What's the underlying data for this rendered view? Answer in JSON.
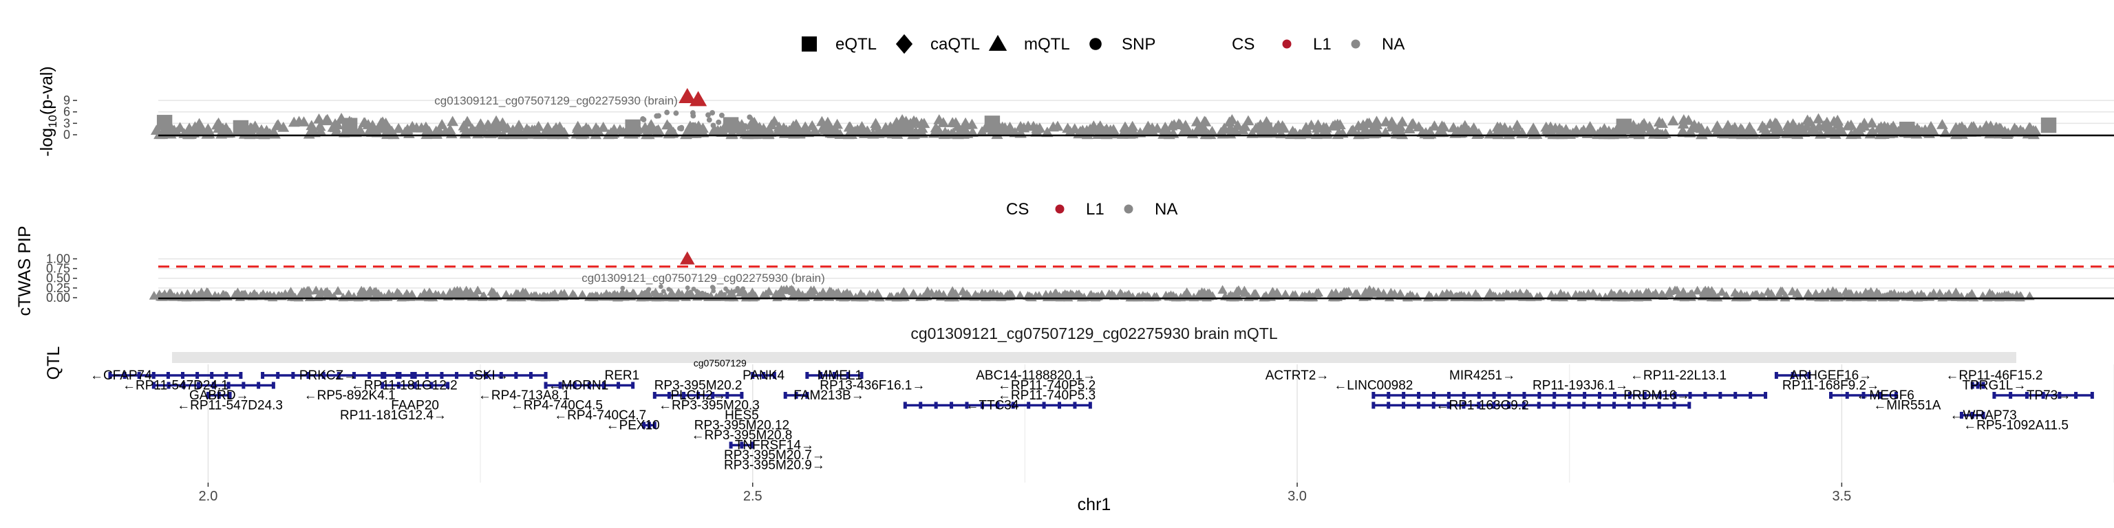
{
  "legend_top": {
    "shape_title": "",
    "shapes": [
      {
        "label": "eQTL",
        "shape": "square"
      },
      {
        "label": "caQTL",
        "shape": "diamond"
      },
      {
        "label": "mQTL",
        "shape": "triangle"
      },
      {
        "label": "SNP",
        "shape": "circle"
      }
    ],
    "cs_title": "CS",
    "cs": [
      {
        "label": "L1",
        "color": "#b2182b"
      },
      {
        "label": "NA",
        "color": "#888888"
      }
    ]
  },
  "legend_mid": {
    "cs_title": "CS",
    "cs": [
      {
        "label": "L1",
        "color": "#b2182b"
      },
      {
        "label": "NA",
        "color": "#888888"
      }
    ]
  },
  "colors": {
    "point_na": "#8c8c8c",
    "point_l1": "#c0272d",
    "threshold": "#e8201f",
    "gene": "#1a1a8c",
    "grid": "#e5e5e5",
    "strip": "#e5e5e5"
  },
  "chart_data": [
    {
      "type": "scatter",
      "panel": "qtl-pvalue",
      "ylabel": "-log10(p-val)",
      "yticks": [
        0,
        3,
        6,
        9
      ],
      "ylim": [
        0,
        11
      ],
      "xlim": [
        1.91,
        3.75
      ],
      "grid": true,
      "annotation": {
        "text": "cg01309121_cg07507129_cg02275930 (brain)",
        "x": 2.44
      },
      "highlight": [
        {
          "x": 2.44,
          "y": 10.0,
          "shape": "triangle",
          "cs": "L1"
        },
        {
          "x": 2.45,
          "y": 9.2,
          "shape": "triangle",
          "cs": "L1"
        }
      ],
      "background": {
        "x_start": 1.95,
        "x_end": 3.68,
        "y_max": 4.5,
        "shape": "triangle",
        "cs": "NA"
      },
      "squares": [
        {
          "x": 1.96,
          "y": 3.2
        },
        {
          "x": 2.03,
          "y": 1.8
        },
        {
          "x": 2.13,
          "y": 2.4
        },
        {
          "x": 2.39,
          "y": 2.0
        },
        {
          "x": 2.48,
          "y": 2.6
        },
        {
          "x": 2.64,
          "y": 1.5
        },
        {
          "x": 2.72,
          "y": 3.0
        },
        {
          "x": 2.97,
          "y": 1.2
        },
        {
          "x": 3.3,
          "y": 2.2
        },
        {
          "x": 3.56,
          "y": 1.4
        },
        {
          "x": 3.69,
          "y": 2.5
        }
      ]
    },
    {
      "type": "scatter",
      "panel": "ctwas-pip",
      "ylabel": "cTWAS PIP",
      "yticks": [
        0.0,
        0.25,
        0.5,
        0.75,
        1.0
      ],
      "ytick_labels": [
        "0.00",
        "0.25",
        "0.50",
        "0.75",
        "1.00"
      ],
      "ylim": [
        0,
        1.15
      ],
      "xlim": [
        1.91,
        3.75
      ],
      "threshold": 0.8,
      "grid": true,
      "annotation": {
        "text": "cg01309121_cg07507129_cg02275930 (brain)",
        "x": 2.44
      },
      "highlight": [
        {
          "x": 2.44,
          "y": 1.0,
          "shape": "triangle",
          "cs": "L1"
        }
      ],
      "background": {
        "x_start": 1.95,
        "x_end": 3.68,
        "y_max": 0.22,
        "shape": "triangle",
        "cs": "NA"
      }
    },
    {
      "type": "gene-track",
      "panel": "genes",
      "strip_title": "cg01309121_cg07507129_cg02275930 brain mQTL",
      "ylabel": "QTL",
      "xlabel": "chr1",
      "xlim": [
        1.91,
        3.75
      ],
      "xticks": [
        2.0,
        2.5,
        3.0,
        3.5
      ],
      "xtick_labels": [
        "2.0",
        "2.5",
        "3.0",
        "3.5"
      ],
      "minor_xticks": [
        2.25,
        2.75,
        3.25,
        3.75
      ],
      "label_overlap": "cg07507129",
      "genes": [
        {
          "label": "←CFAP74",
          "row": 0,
          "x": 1.92,
          "start": 1.91,
          "end": 2.03
        },
        {
          "label": "←RP11-547D24.1",
          "row": 1,
          "x": 1.97,
          "start": 1.95,
          "end": 2.06
        },
        {
          "label": "GABRD→",
          "row": 2,
          "x": 2.01,
          "start": 2.0,
          "end": 2.02
        },
        {
          "label": "←RP11-547D24.3",
          "row": 3,
          "x": 2.02
        },
        {
          "label": "PRKCZ→",
          "row": 0,
          "x": 2.11,
          "start": 2.05,
          "end": 2.19
        },
        {
          "label": "←RP11-181G12.2",
          "row": 1,
          "x": 2.18,
          "start": 2.16,
          "end": 2.22
        },
        {
          "label": "←RP5-892K4.1",
          "row": 2,
          "x": 2.13
        },
        {
          "label": "FAAP20",
          "row": 3,
          "x": 2.19
        },
        {
          "label": "RP11-181G12.4→",
          "row": 4,
          "x": 2.17
        },
        {
          "label": "SKI→",
          "row": 0,
          "x": 2.26,
          "start": 2.16,
          "end": 2.31
        },
        {
          "label": "←MORN1",
          "row": 1,
          "x": 2.34,
          "start": 2.31,
          "end": 2.39
        },
        {
          "label": "←RP4-713A8.1",
          "row": 2,
          "x": 2.29
        },
        {
          "label": "←RP4-740C4.5",
          "row": 3,
          "x": 2.32
        },
        {
          "label": "←RP4-740C4.7",
          "row": 4,
          "x": 2.36
        },
        {
          "label": "RER1",
          "row": 0,
          "x": 2.38
        },
        {
          "label": "←PEX10",
          "row": 5,
          "x": 2.39,
          "start": 2.4,
          "end": 2.41
        },
        {
          "label": "RP3-395M20.2",
          "row": 1,
          "x": 2.45
        },
        {
          "label": "PLCH2→",
          "row": 2,
          "x": 2.45,
          "start": 2.41,
          "end": 2.49
        },
        {
          "label": "←RP3-395M20.3",
          "row": 3,
          "x": 2.46
        },
        {
          "label": "HES5",
          "row": 4,
          "x": 2.49
        },
        {
          "label": "RP3-395M20.12",
          "row": 5,
          "x": 2.49
        },
        {
          "label": "←RP3-395M20.8",
          "row": 6,
          "x": 2.49
        },
        {
          "label": "TNFRSF14→",
          "row": 7,
          "x": 2.52,
          "start": 2.48,
          "end": 2.5
        },
        {
          "label": "RP3-395M20.7→",
          "row": 8,
          "x": 2.52
        },
        {
          "label": "RP3-395M20.9→",
          "row": 9,
          "x": 2.52
        },
        {
          "label": "PANK4",
          "row": 0,
          "x": 2.51,
          "start": 2.5,
          "end": 2.52
        },
        {
          "label": "MMEL1",
          "row": 0,
          "x": 2.58,
          "start": 2.55,
          "end": 2.6
        },
        {
          "label": "RP13-436F16.1→",
          "row": 1,
          "x": 2.61
        },
        {
          "label": "FAM213B→",
          "row": 2,
          "x": 2.57,
          "start": 2.53,
          "end": 2.55
        },
        {
          "label": "←TTC34",
          "row": 3,
          "x": 2.72,
          "start": 2.64,
          "end": 2.81
        },
        {
          "label": "ABC14-1188820.1→",
          "row": 0,
          "x": 2.76
        },
        {
          "label": "←RP11-740P5.2",
          "row": 1,
          "x": 2.77
        },
        {
          "label": "←RP11-740P5.3",
          "row": 2,
          "x": 2.77
        },
        {
          "label": "ACTRT2→",
          "row": 0,
          "x": 3.0
        },
        {
          "label": "←LINC00982",
          "row": 1,
          "x": 3.07
        },
        {
          "label": "←RP1-163G9.2",
          "row": 3,
          "x": 3.17,
          "start": 3.07,
          "end": 3.36
        },
        {
          "label": "MIR4251→",
          "row": 0,
          "x": 3.17
        },
        {
          "label": "RP11-193J6.1→",
          "row": 1,
          "x": 3.26
        },
        {
          "label": "PRDM16→",
          "row": 2,
          "x": 3.33,
          "start": 3.07,
          "end": 3.43
        },
        {
          "label": "←RP11-22L13.1",
          "row": 0,
          "x": 3.35
        },
        {
          "label": "ARHGEF16→",
          "row": 0,
          "x": 3.49,
          "start": 3.44,
          "end": 3.47
        },
        {
          "label": "RP11-168F9.2→",
          "row": 1,
          "x": 3.49
        },
        {
          "label": "←MEGF6",
          "row": 2,
          "x": 3.54,
          "start": 3.49,
          "end": 3.55
        },
        {
          "label": "←MIR551A",
          "row": 3,
          "x": 3.56
        },
        {
          "label": "←RP11-46F15.2",
          "row": 0,
          "x": 3.64
        },
        {
          "label": "TPRG1L→",
          "row": 1,
          "x": 3.64,
          "start": 3.62,
          "end": 3.63
        },
        {
          "label": "TP73→",
          "row": 2,
          "x": 3.69,
          "start": 3.64,
          "end": 3.73
        },
        {
          "label": "←WRAP73",
          "row": 4,
          "x": 3.63,
          "start": 3.61,
          "end": 3.63
        },
        {
          "label": "←RP5-1092A11.5",
          "row": 5,
          "x": 3.66
        }
      ]
    }
  ]
}
